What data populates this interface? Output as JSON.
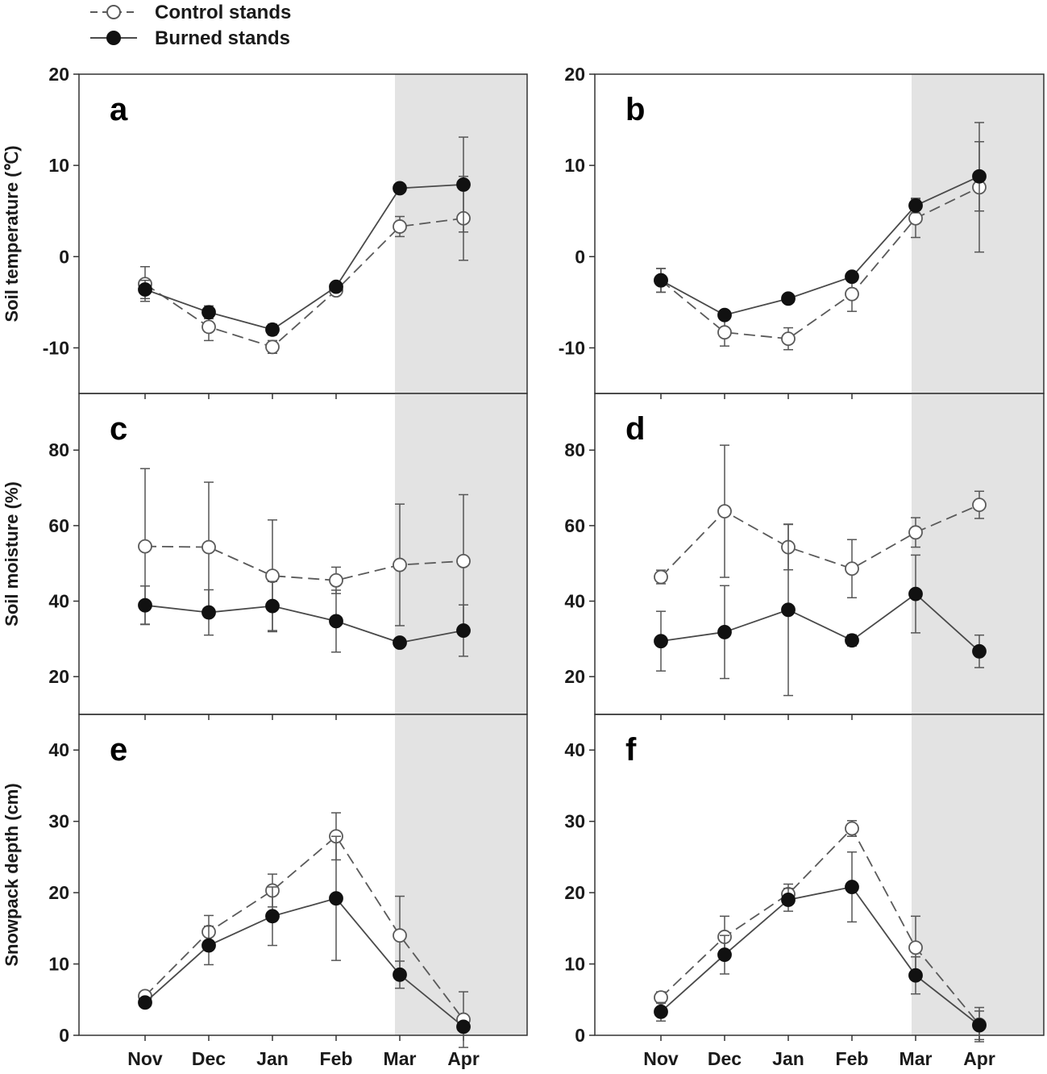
{
  "legend": [
    {
      "label": "Control stands",
      "marker": "open-circle",
      "line": "dashed"
    },
    {
      "label": "Burned stands",
      "marker": "filled-circle",
      "line": "solid"
    }
  ],
  "colors": {
    "axis": "#333333",
    "control_line": "#5a5a5a",
    "burned_line": "#4a4a4a",
    "burned_fill": "#111111",
    "shade": "#e3e3e3",
    "errorbar": "#555555"
  },
  "chart_data": [
    {
      "panel": "a",
      "type": "line",
      "ylabel": "Soil temperature (℃)",
      "categories": [
        "Nov",
        "Dec",
        "Jan",
        "Feb",
        "Mar",
        "Apr"
      ],
      "ylim": [
        -15,
        20
      ],
      "yticks": [
        -10,
        0,
        10,
        20
      ],
      "ytick_labels": [
        "-10",
        "0",
        "10",
        "20"
      ],
      "shaded_categories": [
        "Mar",
        "Apr"
      ],
      "series": [
        {
          "name": "Control stands",
          "values": [
            -3.0,
            -7.7,
            -9.9,
            -3.7,
            3.3,
            4.2
          ],
          "errors": [
            1.9,
            1.5,
            0.7,
            0.5,
            1.1,
            4.6
          ]
        },
        {
          "name": "Burned stands",
          "values": [
            -3.6,
            -6.1,
            -8.0,
            -3.3,
            7.5,
            7.9
          ],
          "errors": [
            1.0,
            0.7,
            0.6,
            0.3,
            0.0,
            5.2
          ]
        }
      ]
    },
    {
      "panel": "b",
      "type": "line",
      "ylabel": "",
      "categories": [
        "Nov",
        "Dec",
        "Jan",
        "Feb",
        "Mar",
        "Apr"
      ],
      "ylim": [
        -15,
        20
      ],
      "yticks": [
        -10,
        0,
        10,
        20
      ],
      "ytick_labels": [
        "-10",
        "0",
        "10",
        "20"
      ],
      "shaded_categories": [
        "Mar",
        "Apr"
      ],
      "series": [
        {
          "name": "Control stands",
          "values": [
            -2.6,
            -8.3,
            -9.0,
            -4.1,
            4.2,
            7.6
          ],
          "errors": [
            1.3,
            1.5,
            1.2,
            1.9,
            2.1,
            7.1
          ]
        },
        {
          "name": "Burned stands",
          "values": [
            -2.6,
            -6.4,
            -4.6,
            -2.2,
            5.6,
            8.8
          ],
          "errors": [
            1.3,
            0.4,
            0.4,
            0.3,
            0.8,
            3.8
          ]
        }
      ]
    },
    {
      "panel": "c",
      "type": "line",
      "ylabel": "Soil moisture (%)",
      "categories": [
        "Nov",
        "Dec",
        "Jan",
        "Feb",
        "Mar",
        "Apr"
      ],
      "ylim": [
        10,
        95
      ],
      "yticks": [
        20,
        40,
        60,
        80
      ],
      "ytick_labels": [
        "20",
        "40",
        "60",
        "80"
      ],
      "shaded_categories": [
        "Mar",
        "Apr"
      ],
      "series": [
        {
          "name": "Control stands",
          "values": [
            54.5,
            54.3,
            46.7,
            45.5,
            49.6,
            50.6
          ],
          "errors": [
            20.6,
            17.2,
            14.8,
            3.5,
            16.1,
            17.6
          ]
        },
        {
          "name": "Burned stands",
          "values": [
            38.9,
            37.0,
            38.7,
            34.7,
            29.0,
            32.2
          ],
          "errors": [
            5.1,
            6.0,
            6.5,
            8.2,
            0.0,
            6.8
          ]
        }
      ]
    },
    {
      "panel": "d",
      "type": "line",
      "ylabel": "",
      "categories": [
        "Nov",
        "Dec",
        "Jan",
        "Feb",
        "Mar",
        "Apr"
      ],
      "ylim": [
        10,
        95
      ],
      "yticks": [
        20,
        40,
        60,
        80
      ],
      "ytick_labels": [
        "20",
        "40",
        "60",
        "80"
      ],
      "shaded_categories": [
        "Mar",
        "Apr"
      ],
      "series": [
        {
          "name": "Control stands",
          "values": [
            46.4,
            63.8,
            54.3,
            48.6,
            58.2,
            65.5
          ],
          "errors": [
            1.8,
            17.5,
            6.0,
            7.7,
            3.9,
            3.6
          ]
        },
        {
          "name": "Burned stands",
          "values": [
            29.4,
            31.8,
            37.7,
            29.6,
            41.9,
            26.7
          ],
          "errors": [
            7.9,
            12.3,
            22.7,
            1.5,
            10.3,
            4.3
          ]
        }
      ]
    },
    {
      "panel": "e",
      "type": "line",
      "ylabel": "Snowpack depth (cm)",
      "categories": [
        "Nov",
        "Dec",
        "Jan",
        "Feb",
        "Mar",
        "Apr"
      ],
      "ylim": [
        0,
        45
      ],
      "yticks": [
        0,
        10,
        20,
        30,
        40
      ],
      "ytick_labels": [
        "0",
        "10",
        "20",
        "30",
        "40"
      ],
      "shaded_categories": [
        "Mar",
        "Apr"
      ],
      "series": [
        {
          "name": "Control stands",
          "values": [
            5.5,
            14.5,
            20.3,
            27.9,
            14.0,
            2.2
          ],
          "errors": [
            0.6,
            2.3,
            2.3,
            3.3,
            5.5,
            3.9
          ]
        },
        {
          "name": "Burned stands",
          "values": [
            4.6,
            12.6,
            16.7,
            19.2,
            8.5,
            1.2
          ],
          "errors": [
            0.5,
            2.7,
            4.1,
            8.7,
            1.9,
            0.4
          ]
        }
      ]
    },
    {
      "panel": "f",
      "type": "line",
      "ylabel": "",
      "categories": [
        "Nov",
        "Dec",
        "Jan",
        "Feb",
        "Mar",
        "Apr"
      ],
      "ylim": [
        0,
        45
      ],
      "yticks": [
        0,
        10,
        20,
        30,
        40
      ],
      "ytick_labels": [
        "0",
        "10",
        "20",
        "30",
        "40"
      ],
      "shaded_categories": [
        "Mar",
        "Apr"
      ],
      "series": [
        {
          "name": "Control stands",
          "values": [
            5.3,
            13.8,
            19.8,
            29.0,
            12.3,
            1.5
          ],
          "errors": [
            0.8,
            2.9,
            1.4,
            1.1,
            4.4,
            2.4
          ]
        },
        {
          "name": "Burned stands",
          "values": [
            3.3,
            11.3,
            19.0,
            20.8,
            8.4,
            1.4
          ],
          "errors": [
            1.3,
            2.7,
            1.6,
            4.9,
            2.6,
            2.0
          ]
        }
      ]
    }
  ]
}
